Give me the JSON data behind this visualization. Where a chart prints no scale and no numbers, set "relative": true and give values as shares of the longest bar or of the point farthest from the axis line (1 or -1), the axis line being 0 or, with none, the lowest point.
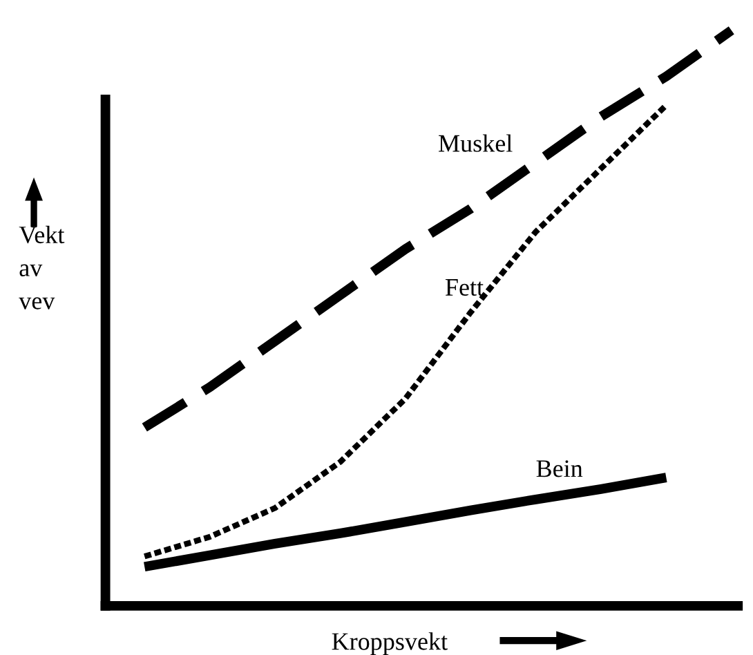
{
  "chart_data": {
    "type": "line",
    "relative": true,
    "xlabel": "Kroppsvekt",
    "ylabel": "Vekt\nav\nvev",
    "categories": [
      null,
      null,
      null,
      null,
      null,
      null,
      null,
      null,
      null,
      null
    ],
    "series": [
      {
        "name": "Muskel",
        "color": "#000000",
        "line_style": "dashed",
        "values": [
          0.31,
          0.38,
          0.46,
          0.54,
          0.62,
          0.69,
          0.77,
          0.85,
          0.92,
          1.0
        ]
      },
      {
        "name": "Fett",
        "color": "#000000",
        "line_style": "dotted",
        "values": [
          0.086,
          0.12,
          0.17,
          0.25,
          0.36,
          0.51,
          0.65,
          0.76,
          0.87,
          null
        ]
      },
      {
        "name": "Bein",
        "color": "#000000",
        "line_style": "solid",
        "values": [
          0.068,
          0.088,
          0.108,
          0.126,
          0.146,
          0.166,
          0.185,
          0.203,
          0.223,
          null
        ]
      }
    ],
    "legend": false,
    "marker": "none"
  }
}
